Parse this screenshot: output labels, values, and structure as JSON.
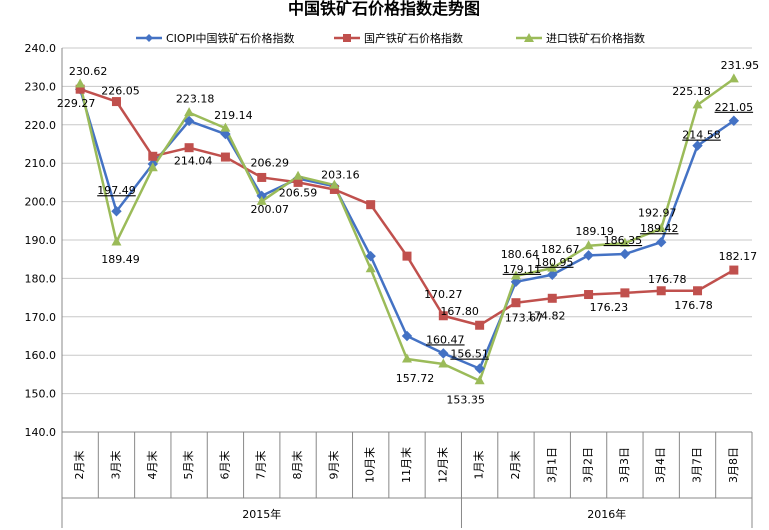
{
  "chart_data": {
    "type": "line",
    "title": "中国铁矿石价格指数走势图",
    "categories": [
      "2月末",
      "3月末",
      "4月末",
      "5月末",
      "6月末",
      "7月末",
      "8月末",
      "9月末",
      "10月末",
      "11月末",
      "12月末",
      "1月末",
      "2月末",
      "3月1日",
      "3月2日",
      "3月3日",
      "3月4日",
      "3月7日",
      "3月8日"
    ],
    "year_groups": [
      {
        "label": "2015年",
        "start": 0,
        "end": 10
      },
      {
        "label": "2016年",
        "start": 11,
        "end": 18
      }
    ],
    "ylim": [
      140,
      240
    ],
    "yticks": [
      "140.0",
      "150.0",
      "160.0",
      "170.0",
      "180.0",
      "190.0",
      "200.0",
      "210.0",
      "220.0",
      "230.0",
      "240.0"
    ],
    "grid": true,
    "legend_position": "top",
    "series": [
      {
        "name": "CIOPI中国铁矿石价格指数",
        "color": "#4472c4",
        "marker": "diamond",
        "values": [
          229.27,
          197.49,
          209.8,
          221.0,
          217.6,
          201.5,
          206.0,
          204.0,
          185.8,
          165.0,
          160.47,
          156.51,
          179.11,
          180.95,
          186.0,
          186.35,
          189.42,
          214.58,
          221.05
        ]
      },
      {
        "name": "国产铁矿石价格指数",
        "color": "#c0504d",
        "marker": "square",
        "values": [
          229.27,
          226.05,
          211.8,
          214.04,
          211.6,
          206.29,
          205.0,
          203.16,
          199.2,
          185.8,
          170.27,
          167.8,
          173.67,
          174.82,
          175.8,
          176.23,
          176.78,
          176.78,
          182.17
        ]
      },
      {
        "name": "进口铁矿石价格指数",
        "color": "#9bbb59",
        "marker": "triangle",
        "values": [
          230.62,
          189.49,
          208.8,
          223.18,
          219.14,
          200.07,
          206.59,
          204.3,
          182.5,
          159.0,
          157.72,
          153.35,
          180.64,
          182.67,
          188.5,
          189.19,
          192.97,
          225.18,
          231.95
        ]
      }
    ],
    "data_labels": [
      {
        "text": "230.62"
      },
      {
        "text": "229.27"
      },
      {
        "text": "226.05"
      },
      {
        "text": "197.49",
        "underline": true
      },
      {
        "text": "189.49"
      },
      {
        "text": "223.18"
      },
      {
        "text": "214.04"
      },
      {
        "text": "219.14"
      },
      {
        "text": "206.29"
      },
      {
        "text": "200.07"
      },
      {
        "text": "206.59"
      },
      {
        "text": "203.16"
      },
      {
        "text": "170.27"
      },
      {
        "text": "167.80"
      },
      {
        "text": "160.47",
        "underline": true
      },
      {
        "text": "157.72"
      },
      {
        "text": "156.51",
        "underline": true
      },
      {
        "text": "153.35"
      },
      {
        "text": "180.64"
      },
      {
        "text": "179.11",
        "underline": true
      },
      {
        "text": "173.67"
      },
      {
        "text": "182.67"
      },
      {
        "text": "180.95",
        "underline": true
      },
      {
        "text": "174.82"
      },
      {
        "text": "189.19"
      },
      {
        "text": "186.35",
        "underline": true
      },
      {
        "text": "176.23"
      },
      {
        "text": "192.97"
      },
      {
        "text": "189.42",
        "underline": true
      },
      {
        "text": "176.78"
      },
      {
        "text": "225.18"
      },
      {
        "text": "214.58",
        "underline": true
      },
      {
        "text": "176.78"
      },
      {
        "text": "231.95"
      },
      {
        "text": "221.05",
        "underline": true
      },
      {
        "text": "182.17"
      }
    ]
  }
}
